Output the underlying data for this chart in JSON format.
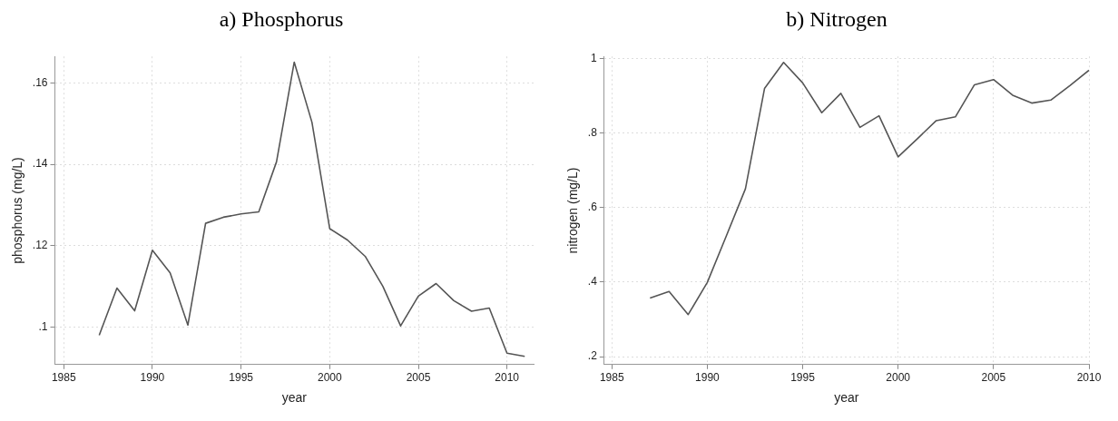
{
  "chart_data": [
    {
      "type": "line",
      "title": "a) Phosphorus",
      "xlabel": "year",
      "ylabel": "phosphorus (mg/L)",
      "grid": true,
      "marker": "none",
      "line_style": "solid",
      "x": [
        1987,
        1988,
        1989,
        1990,
        1991,
        1992,
        1993,
        1994,
        1995,
        1996,
        1997,
        1998,
        1999,
        2000,
        2001,
        2002,
        2003,
        2004,
        2005,
        2006,
        2007,
        2008,
        2009,
        2010,
        2011
      ],
      "series": [
        {
          "color": "#555555",
          "values": [
            0.098,
            0.1096,
            0.104,
            0.1189,
            0.1133,
            0.1005,
            0.1255,
            0.127,
            0.1278,
            0.1283,
            0.1406,
            0.1651,
            0.1503,
            0.1242,
            0.1214,
            0.1174,
            0.11,
            0.1003,
            0.1076,
            0.1107,
            0.1065,
            0.1039,
            0.1047,
            0.0936,
            0.0928
          ]
        }
      ],
      "xlim": [
        1984.5,
        2011.5
      ],
      "xticks": [
        1985,
        1990,
        1995,
        2000,
        2005,
        2010
      ],
      "ylim": [
        0.0908,
        0.1665
      ],
      "yticks": [
        {
          "value": 0.1,
          "label": ".1"
        },
        {
          "value": 0.12,
          "label": ".12"
        },
        {
          "value": 0.14,
          "label": ".14"
        },
        {
          "value": 0.16,
          "label": ".16"
        }
      ]
    },
    {
      "type": "line",
      "title": "b) Nitrogen",
      "xlabel": "year",
      "ylabel": "nitrogen (mg/L)",
      "grid": true,
      "marker": "none",
      "line_style": "solid",
      "x": [
        1987,
        1988,
        1989,
        1990,
        1991,
        1992,
        1993,
        1994,
        1995,
        1996,
        1997,
        1998,
        1999,
        2000,
        2001,
        2002,
        2003,
        2004,
        2005,
        2006,
        2007,
        2008,
        2009,
        2010
      ],
      "series": [
        {
          "color": "#555555",
          "values": [
            0.357,
            0.375,
            0.313,
            0.399,
            0.524,
            0.65,
            0.919,
            0.989,
            0.934,
            0.854,
            0.906,
            0.815,
            0.846,
            0.736,
            0.784,
            0.833,
            0.843,
            0.929,
            0.943,
            0.901,
            0.88,
            0.888,
            0.927,
            0.968
          ]
        }
      ],
      "xlim": [
        1984.6,
        2010
      ],
      "xticks": [
        1985,
        1990,
        1995,
        2000,
        2005,
        2010
      ],
      "ylim": [
        0.179,
        1.005
      ],
      "yticks": [
        {
          "value": 0.2,
          "label": ".2"
        },
        {
          "value": 0.4,
          "label": ".4"
        },
        {
          "value": 0.6,
          "label": ".6"
        },
        {
          "value": 0.8,
          "label": ".8"
        },
        {
          "value": 1,
          "label": "1"
        }
      ]
    }
  ]
}
